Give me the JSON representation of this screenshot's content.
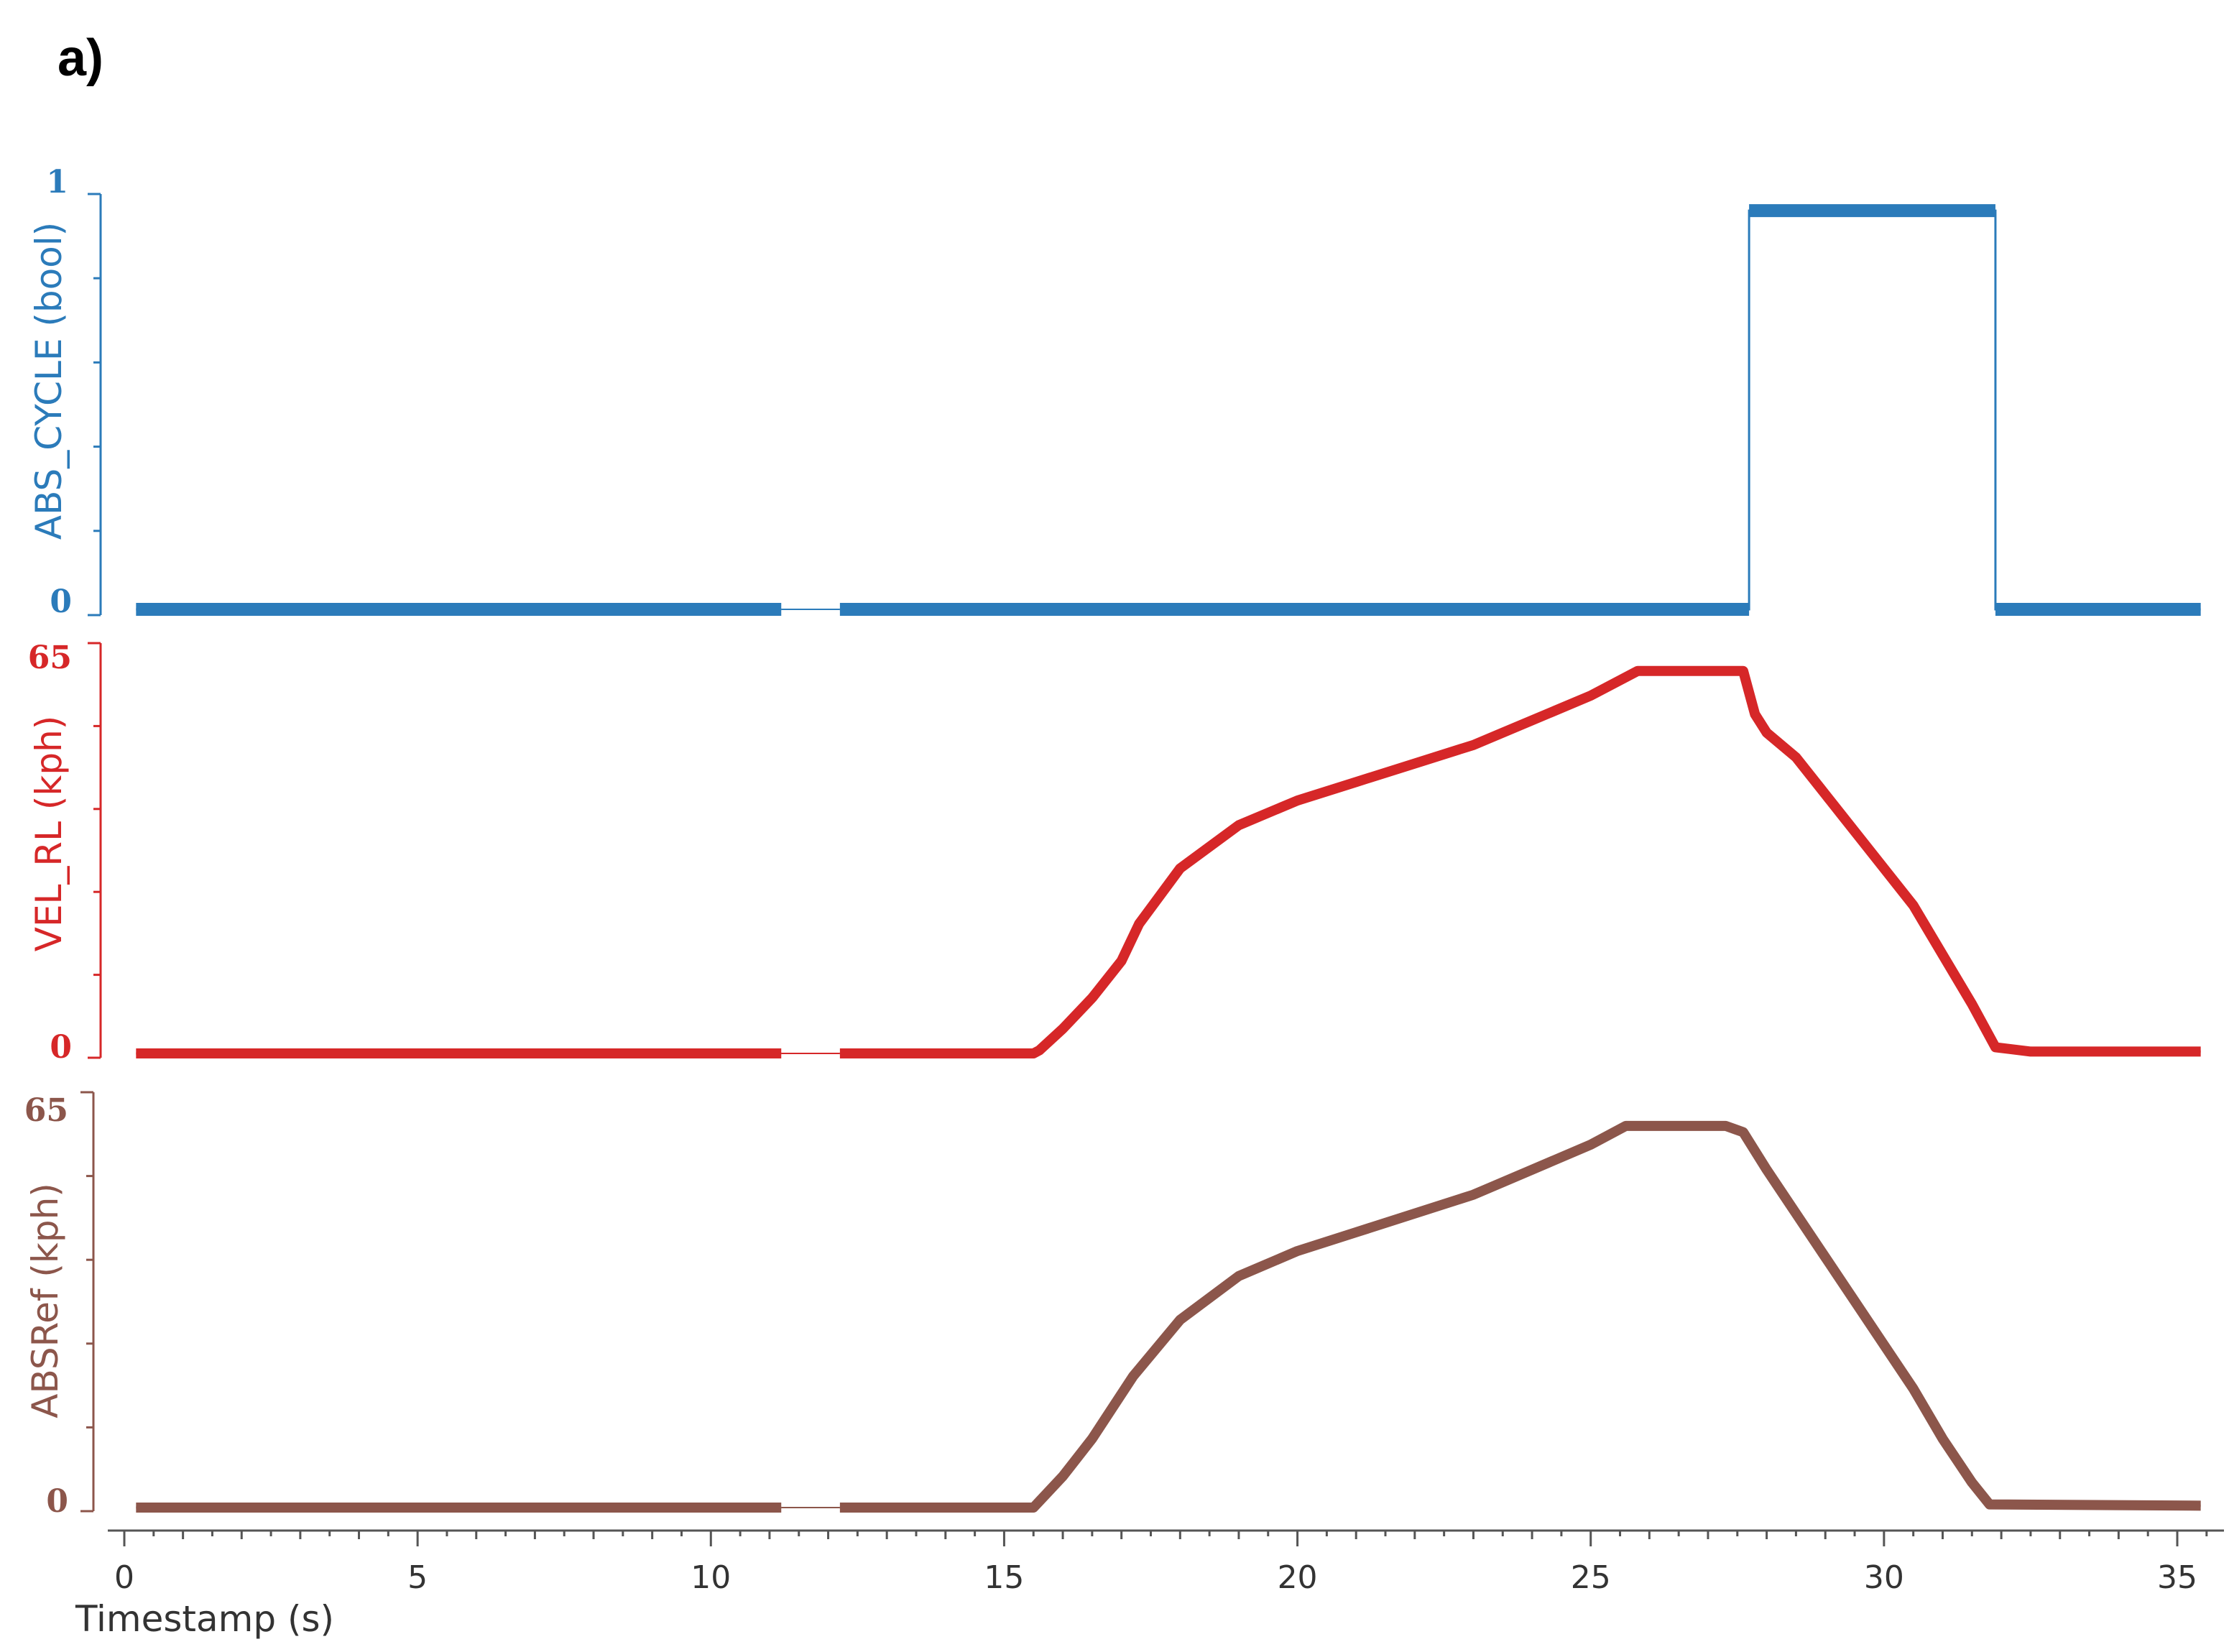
{
  "panel_label": "a)",
  "chart_data": {
    "type": "line",
    "xlabel": "Timestamp (s)",
    "xlim": [
      0,
      35.5
    ],
    "xticks": [
      0,
      5,
      10,
      15,
      20,
      25,
      30,
      35
    ],
    "series": [
      {
        "name": "ABS_CYCLE",
        "ylabel": "ABS_CYCLE (bool)",
        "color": "#2b7bba",
        "ylim": [
          0,
          1
        ],
        "ytick_labels": [
          "1",
          "0"
        ],
        "segments": [
          [
            [
              0.2,
              0
            ],
            [
              11.2,
              0
            ]
          ],
          [
            [
              12.2,
              0
            ],
            [
              27.7,
              0
            ],
            [
              27.7,
              0.96
            ],
            [
              31.9,
              0.96
            ],
            [
              31.9,
              0
            ],
            [
              35.4,
              0
            ]
          ]
        ]
      },
      {
        "name": "VEL_RL",
        "ylabel": "VEL_RL (kph)",
        "color": "#d62728",
        "ylim": [
          0,
          65
        ],
        "ytick_labels": [
          "65",
          "0"
        ],
        "segments": [
          [
            [
              0.2,
              0
            ],
            [
              11.2,
              0
            ]
          ],
          [
            [
              12.2,
              0
            ],
            [
              15.5,
              0
            ],
            [
              15.6,
              0.5
            ],
            [
              16.0,
              4
            ],
            [
              16.5,
              9
            ],
            [
              17.0,
              15
            ],
            [
              17.3,
              21
            ],
            [
              18.0,
              30
            ],
            [
              19.0,
              37
            ],
            [
              20.0,
              41
            ],
            [
              21.0,
              44
            ],
            [
              22.0,
              47
            ],
            [
              23.0,
              50
            ],
            [
              24.0,
              54
            ],
            [
              25.0,
              58
            ],
            [
              25.8,
              62
            ],
            [
              26.5,
              62
            ],
            [
              27.6,
              62
            ],
            [
              27.8,
              55
            ],
            [
              28.0,
              52
            ],
            [
              28.5,
              48
            ],
            [
              29.0,
              42
            ],
            [
              29.5,
              36
            ],
            [
              30.0,
              30
            ],
            [
              30.5,
              24
            ],
            [
              31.0,
              16
            ],
            [
              31.5,
              8
            ],
            [
              31.9,
              1
            ],
            [
              32.5,
              0.3
            ],
            [
              35.4,
              0.3
            ]
          ]
        ]
      },
      {
        "name": "ABSRef",
        "ylabel": "ABSRef (kph)",
        "color": "#8c564b",
        "ylim": [
          0,
          65
        ],
        "ytick_labels": [
          "65",
          "0"
        ],
        "segments": [
          [
            [
              0.2,
              0
            ],
            [
              11.2,
              0
            ]
          ],
          [
            [
              12.2,
              0
            ],
            [
              15.5,
              0
            ],
            [
              15.6,
              1
            ],
            [
              16.0,
              5
            ],
            [
              16.5,
              11
            ],
            [
              17.2,
              21
            ],
            [
              18.0,
              30
            ],
            [
              19.0,
              37
            ],
            [
              20.0,
              41
            ],
            [
              21.0,
              44
            ],
            [
              22.0,
              47
            ],
            [
              23.0,
              50
            ],
            [
              24.0,
              54
            ],
            [
              25.0,
              58
            ],
            [
              25.6,
              61
            ],
            [
              26.2,
              61
            ],
            [
              27.3,
              61
            ],
            [
              27.6,
              60
            ],
            [
              28.0,
              54
            ],
            [
              28.5,
              47
            ],
            [
              29.0,
              40
            ],
            [
              29.5,
              33
            ],
            [
              30.0,
              26
            ],
            [
              30.5,
              19
            ],
            [
              31.0,
              11
            ],
            [
              31.5,
              4
            ],
            [
              31.8,
              0.5
            ],
            [
              35.4,
              0.3
            ]
          ]
        ]
      }
    ]
  }
}
